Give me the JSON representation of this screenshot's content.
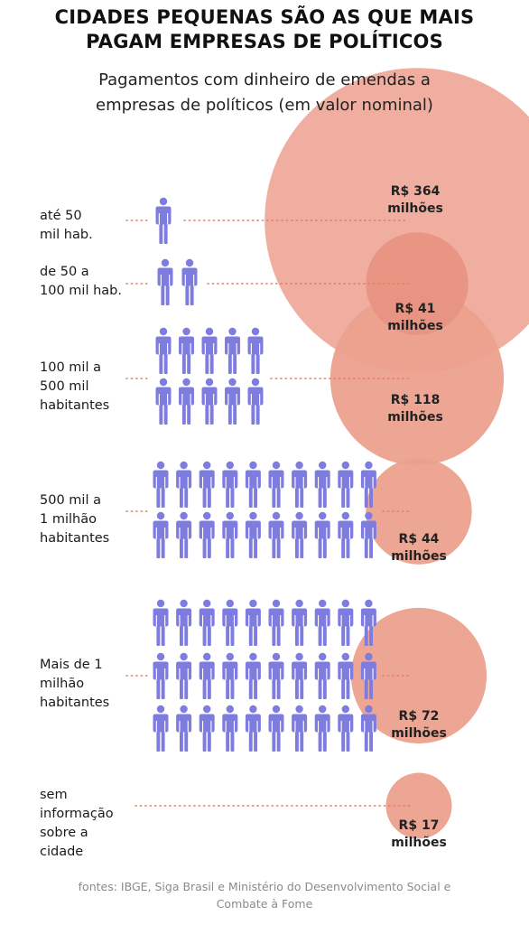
{
  "title_line1": "CIDADES PEQUENAS SÃO AS QUE MAIS",
  "title_line2": "PAGAM EMPRESAS DE POLÍTICOS",
  "subtitle_line1": "Pagamentos com dinheiro de emendas a",
  "subtitle_line2": "empresas de políticos (em valor nominal)",
  "source_line1": "fontes: IBGE, Siga Brasil e Ministério do Desenvolvimento Social e",
  "source_line2": "Combate à Fome",
  "colors": {
    "person": "#7f7ce0",
    "bubble": "#eca08e",
    "bubble_small": "#e79482",
    "dots": "#e37c62"
  },
  "chart_data": {
    "type": "bubble",
    "unit": "R$ milhões",
    "categories": [
      {
        "label_lines": [
          "até 50",
          "mil hab."
        ],
        "value": 364,
        "value_line1": "R$ 364",
        "value_line2": "milhões",
        "persons": 1
      },
      {
        "label_lines": [
          "de 50 a",
          "100 mil hab."
        ],
        "value": 41,
        "value_line1": "R$ 41",
        "value_line2": "milhões",
        "persons": 2
      },
      {
        "label_lines": [
          "100 mil a",
          "500 mil",
          "habitantes"
        ],
        "value": 118,
        "value_line1": "R$ 118",
        "value_line2": "milhões",
        "persons": 10
      },
      {
        "label_lines": [
          "500 mil a",
          "1 milhão",
          "habitantes"
        ],
        "value": 44,
        "value_line1": "R$ 44",
        "value_line2": "milhões",
        "persons": 20
      },
      {
        "label_lines": [
          "Mais de 1",
          "milhão",
          "habitantes"
        ],
        "value": 72,
        "value_line1": "R$ 72",
        "value_line2": "milhões",
        "persons": 30
      },
      {
        "label_lines": [
          "sem",
          "informação",
          "sobre a",
          "cidade"
        ],
        "value": 17,
        "value_line1": "R$ 17",
        "value_line2": "milhões",
        "persons": 0
      }
    ]
  }
}
